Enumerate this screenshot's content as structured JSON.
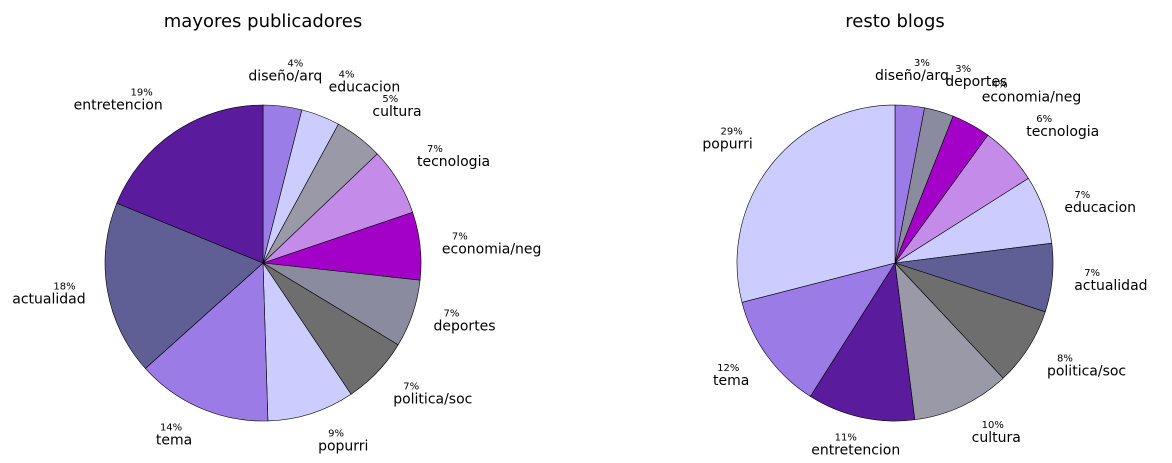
{
  "chart_data": [
    {
      "type": "pie",
      "title": "mayores publicadores",
      "categories": [
        "diseño/arq",
        "educacion",
        "cultura",
        "tecnologia",
        "economia/neg",
        "deportes",
        "politica/soc",
        "popurri",
        "tema",
        "actualidad",
        "entretencion"
      ],
      "values": [
        4,
        4,
        5,
        7,
        7,
        7,
        7,
        9,
        14,
        18,
        19
      ],
      "value_labels": [
        "4%",
        "4%",
        "5%",
        "7%",
        "7%",
        "7%",
        "7%",
        "9%",
        "14%",
        "18%",
        "19%"
      ],
      "colors": [
        "#9a7de6",
        "#ccccff",
        "#9999a8",
        "#c48be8",
        "#a300c8",
        "#8b8ba0",
        "#6e6e6e",
        "#ccccff",
        "#9b7be6",
        "#5f5f96",
        "#5a1c9c"
      ]
    },
    {
      "type": "pie",
      "title": "resto blogs",
      "categories": [
        "diseño/arq",
        "deportes",
        "economia/neg",
        "tecnologia",
        "educacion",
        "actualidad",
        "politica/soc",
        "cultura",
        "entretencion",
        "tema",
        "popurri"
      ],
      "values": [
        3,
        3,
        4,
        6,
        7,
        7,
        8,
        10,
        11,
        12,
        29
      ],
      "value_labels": [
        "3%",
        "3%",
        "4%",
        "6%",
        "7%",
        "7%",
        "8%",
        "10%",
        "11%",
        "12%",
        "29%"
      ],
      "colors": [
        "#9b7be6",
        "#8b8ba0",
        "#a300c8",
        "#c48be8",
        "#ccccff",
        "#5f5f96",
        "#6e6e6e",
        "#9999a8",
        "#5a1c9c",
        "#9b7be6",
        "#ccccff"
      ]
    }
  ]
}
